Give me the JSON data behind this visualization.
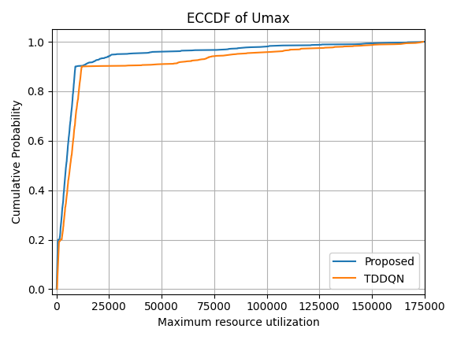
{
  "title": "ECCDF of Umax",
  "xlabel": "Maximum resource utilization",
  "ylabel": "Cumulative Probability",
  "xlim": [
    -2000,
    175000
  ],
  "ylim": [
    -0.02,
    1.05
  ],
  "xticks": [
    0,
    25000,
    50000,
    75000,
    100000,
    125000,
    150000,
    175000
  ],
  "yticks": [
    0.0,
    0.2,
    0.4,
    0.6,
    0.8,
    1.0
  ],
  "legend_labels": [
    "Proposed",
    "TDDQN"
  ],
  "legend_loc": "lower right",
  "colors": [
    "#1f77b4",
    "#ff7f0e"
  ],
  "grid": true,
  "grid_color": "#b0b0b0",
  "grid_linewidth": 0.8,
  "linewidth": 1.5
}
